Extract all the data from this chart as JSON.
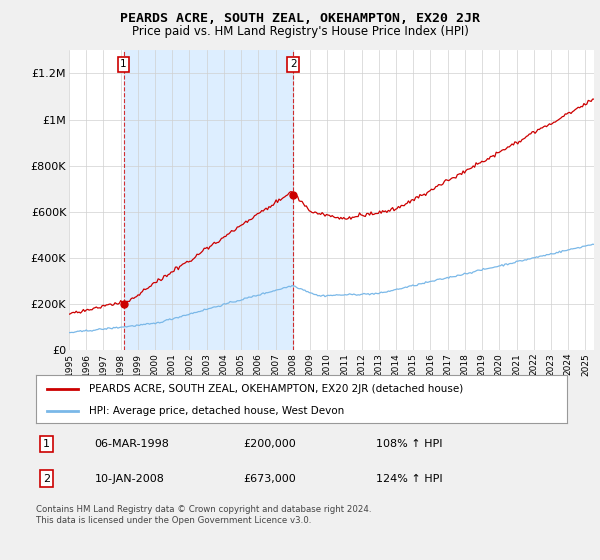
{
  "title": "PEARDS ACRE, SOUTH ZEAL, OKEHAMPTON, EX20 2JR",
  "subtitle": "Price paid vs. HM Land Registry's House Price Index (HPI)",
  "ylabel_ticks": [
    "£0",
    "£200K",
    "£400K",
    "£600K",
    "£800K",
    "£1M",
    "£1.2M"
  ],
  "ytick_values": [
    0,
    200000,
    400000,
    600000,
    800000,
    1000000,
    1200000
  ],
  "ylim": [
    0,
    1300000
  ],
  "xlim_start": 1995.0,
  "xlim_end": 2025.5,
  "hpi_color": "#7ab8e8",
  "price_color": "#cc0000",
  "shade_color": "#ddeeff",
  "marker1_date": 1998.17,
  "marker1_price": 200000,
  "marker2_date": 2008.03,
  "marker2_price": 673000,
  "legend_label1": "PEARDS ACRE, SOUTH ZEAL, OKEHAMPTON, EX20 2JR (detached house)",
  "legend_label2": "HPI: Average price, detached house, West Devon",
  "annotation1_num": "1",
  "annotation1_date": "06-MAR-1998",
  "annotation1_price": "£200,000",
  "annotation1_hpi": "108% ↑ HPI",
  "annotation2_num": "2",
  "annotation2_date": "10-JAN-2008",
  "annotation2_price": "£673,000",
  "annotation2_hpi": "124% ↑ HPI",
  "footer": "Contains HM Land Registry data © Crown copyright and database right 2024.\nThis data is licensed under the Open Government Licence v3.0.",
  "background_color": "#f0f0f0",
  "plot_bg_color": "#ffffff"
}
